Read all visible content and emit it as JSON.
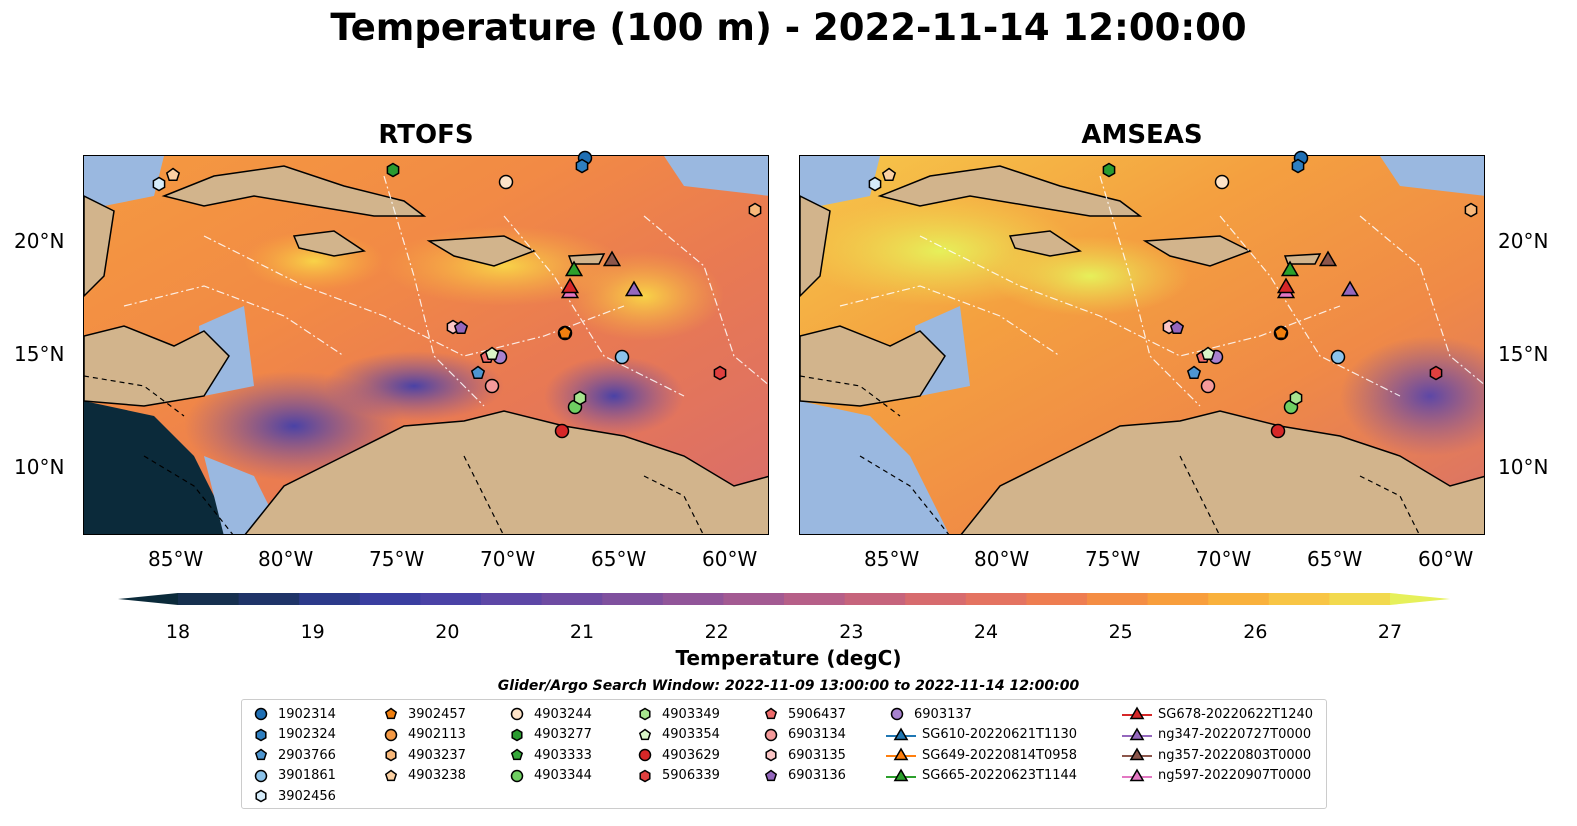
{
  "title": "Temperature (100 m) - 2022-11-14 12:00:00",
  "panels": [
    {
      "title": "RTOFS"
    },
    {
      "title": "AMSEAS"
    }
  ],
  "lon_labels": [
    "85°W",
    "80°W",
    "75°W",
    "70°W",
    "65°W",
    "60°W"
  ],
  "lat_labels": [
    "20°N",
    "15°N",
    "10°N"
  ],
  "colorbar": {
    "label": "Temperature (degC)",
    "ticks": [
      "18",
      "19",
      "20",
      "21",
      "22",
      "23",
      "24",
      "25",
      "26",
      "27"
    ],
    "colors": [
      "#0b2a3a",
      "#16304f",
      "#1f3468",
      "#2c3a8a",
      "#3a3ea0",
      "#4a42a6",
      "#5d47a6",
      "#6e4ba2",
      "#7f509e",
      "#915599",
      "#a35a92",
      "#b65f88",
      "#c6647c",
      "#d76b6e",
      "#e47361",
      "#ee7d51",
      "#f48d44",
      "#f89e3c",
      "#f9b13c",
      "#f8c545",
      "#f2d94e",
      "#e6f05a"
    ]
  },
  "legend": {
    "title": "Glider/Argo Search Window: 2022-11-09 13:00:00 to 2022-11-14 12:00:00",
    "columns": [
      [
        {
          "label": "1902314",
          "marker": "circle",
          "color": "#1f6fb4"
        },
        {
          "label": "1902324",
          "marker": "hexagon",
          "color": "#2f7fc0"
        },
        {
          "label": "2903766",
          "marker": "pentagon",
          "color": "#4e96d0"
        },
        {
          "label": "3901861",
          "marker": "circle",
          "color": "#8cc3ea"
        },
        {
          "label": "3902456",
          "marker": "hexagon",
          "color": "#d6ecfa"
        }
      ],
      [
        {
          "label": "3902457",
          "marker": "pentagon",
          "color": "#f07f0f"
        },
        {
          "label": "4902113",
          "marker": "circle",
          "color": "#f59a45"
        },
        {
          "label": "4903237",
          "marker": "hexagon",
          "color": "#f8b87a"
        },
        {
          "label": "4903238",
          "marker": "pentagon",
          "color": "#fbd0a2"
        }
      ],
      [
        {
          "label": "4903244",
          "marker": "circle",
          "color": "#fde3c8"
        },
        {
          "label": "4903277",
          "marker": "hexagon",
          "color": "#2a9b30"
        },
        {
          "label": "4903333",
          "marker": "pentagon",
          "color": "#35a83a"
        },
        {
          "label": "4903344",
          "marker": "circle",
          "color": "#6fcf62"
        }
      ],
      [
        {
          "label": "4903349",
          "marker": "hexagon",
          "color": "#a7e48f"
        },
        {
          "label": "4903354",
          "marker": "pentagon",
          "color": "#d9f5c8"
        },
        {
          "label": "4903629",
          "marker": "circle",
          "color": "#d62728"
        },
        {
          "label": "5906339",
          "marker": "hexagon",
          "color": "#e0403f"
        }
      ],
      [
        {
          "label": "5906437",
          "marker": "pentagon",
          "color": "#ee6b6b"
        },
        {
          "label": "6903134",
          "marker": "circle",
          "color": "#f59a9a"
        },
        {
          "label": "6903135",
          "marker": "hexagon",
          "color": "#fbc6c6"
        },
        {
          "label": "6903136",
          "marker": "pentagon",
          "color": "#9467bd"
        }
      ],
      [
        {
          "label": "6903137",
          "marker": "circle",
          "color": "#a882cf"
        },
        {
          "label": "SG610-20220621T1130",
          "marker": "triangle-line",
          "color": "#1f77b4"
        },
        {
          "label": "SG649-20220814T0958",
          "marker": "triangle-line",
          "color": "#ff7f0e"
        },
        {
          "label": "SG665-20220623T1144",
          "marker": "triangle-line",
          "color": "#2ca02c"
        }
      ],
      [
        {
          "label": "SG678-20220622T1240",
          "marker": "triangle-line",
          "color": "#d62728"
        },
        {
          "label": "ng347-20220727T0000",
          "marker": "triangle-line",
          "color": "#9467bd"
        },
        {
          "label": "ng357-20220803T0000",
          "marker": "triangle-line",
          "color": "#8c564b"
        },
        {
          "label": "ng597-20220907T0000",
          "marker": "triangle-line",
          "color": "#e377c2"
        }
      ]
    ]
  },
  "colors": {
    "land": "#d2b48c",
    "shallow_water": "#9ab8e0"
  }
}
